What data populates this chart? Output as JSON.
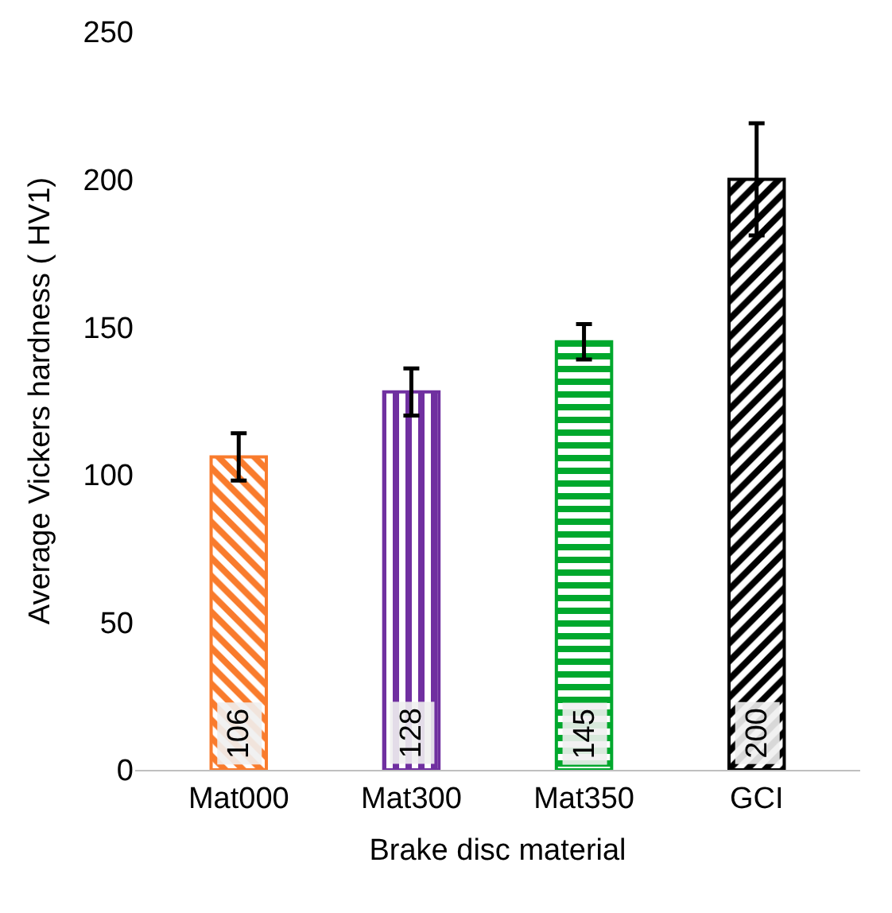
{
  "chart_data": {
    "type": "bar",
    "xlabel": "Brake disc material",
    "ylabel": "Average Vickers hardness ( HV1)",
    "categories": [
      "Mat000",
      "Mat300",
      "Mat350",
      "GCI"
    ],
    "values": [
      106,
      128,
      145,
      200
    ],
    "colors": [
      "#f97b2c",
      "#7030a0",
      "#00a82d",
      "#000000"
    ],
    "errors": [
      8,
      8,
      6,
      19
    ],
    "ylim": [
      0,
      250
    ],
    "yticks": [
      0,
      50,
      100,
      150,
      200,
      250
    ],
    "data_labels": true
  }
}
